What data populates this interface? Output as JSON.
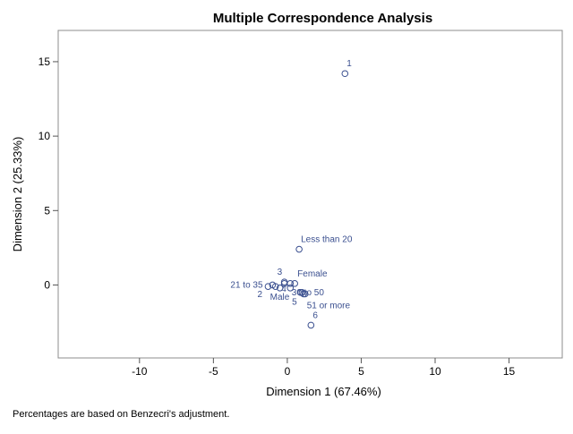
{
  "chart_data": {
    "type": "scatter",
    "title": "Multiple Correspondence Analysis",
    "xlabel": "Dimension 1 (67.46%)",
    "ylabel": "Dimension 2 (25.33%)",
    "xlim": [
      -15.5,
      18.6
    ],
    "ylim": [
      -4.9,
      17.1
    ],
    "xticks": [
      -10,
      -5,
      0,
      5,
      10,
      15
    ],
    "yticks": [
      0,
      5,
      10,
      15
    ],
    "grid": false,
    "legend": "none",
    "marker_color": "#3a4f8f",
    "label_color": "#3a4f8f",
    "points": [
      {
        "label": "1",
        "x": 3.9,
        "y": 14.2,
        "dx": 2,
        "dy": -8
      },
      {
        "label": "Less than 20",
        "x": 0.8,
        "y": 2.4,
        "dx": 2,
        "dy": -8
      },
      {
        "label": "3",
        "x": -0.2,
        "y": 0.2,
        "dx": -8,
        "dy": -8
      },
      {
        "label": "Female",
        "x": 0.5,
        "y": 0.1,
        "dx": 3,
        "dy": -8
      },
      {
        "label": "21 to 35",
        "x": -1.0,
        "y": 0.0,
        "dx": -47,
        "dy": 3
      },
      {
        "label": "2",
        "x": -1.3,
        "y": -0.1,
        "dx": -12,
        "dy": 12
      },
      {
        "label": "Male",
        "x": -0.5,
        "y": -0.2,
        "dx": -11,
        "dy": 13
      },
      {
        "label": "4",
        "x": 0.2,
        "y": -0.2,
        "dx": -10,
        "dy": 4
      },
      {
        "label": "30 to 50",
        "x": 0.9,
        "y": -0.5,
        "dx": -10,
        "dy": 3
      },
      {
        "label": "5",
        "x": 1.1,
        "y": -0.6,
        "dx": -13,
        "dy": 12
      },
      {
        "label": "51 or more",
        "x": 1.2,
        "y": -0.6,
        "dx": 2,
        "dy": 16
      },
      {
        "label": "6",
        "x": 1.6,
        "y": -2.7,
        "dx": 2,
        "dy": -8
      },
      {
        "label": "",
        "x": -0.8,
        "y": -0.1
      },
      {
        "label": "",
        "x": -0.2,
        "y": 0.1
      },
      {
        "label": "",
        "x": 0.2,
        "y": 0.1
      },
      {
        "label": "",
        "x": 1.0,
        "y": -0.5
      }
    ]
  },
  "footnote": "Percentages are based on Benzecri's adjustment."
}
